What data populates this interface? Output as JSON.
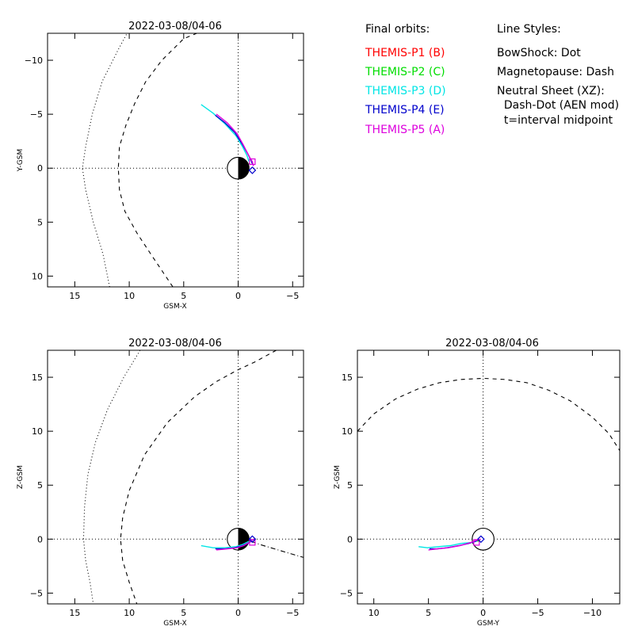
{
  "legend": {
    "orbits_header": "Final orbits:",
    "styles_header": "Line Styles:",
    "probes": [
      {
        "label": "THEMIS-P1 (B)",
        "color": "#ff0000"
      },
      {
        "label": "THEMIS-P2 (C)",
        "color": "#00dd00"
      },
      {
        "label": "THEMIS-P3 (D)",
        "color": "#00e5e5"
      },
      {
        "label": "THEMIS-P4 (E)",
        "color": "#0000cc"
      },
      {
        "label": "THEMIS-P5 (A)",
        "color": "#dd00dd"
      }
    ],
    "styles": [
      "BowShock: Dot",
      "Magnetopause: Dash",
      "Neutral Sheet (XZ):",
      "  Dash-Dot (AEN mod)",
      "  t=interval midpoint"
    ]
  },
  "chart_data": [
    {
      "type": "line",
      "title": "2022-03-08/04-06",
      "xlabel": "GSM-X",
      "ylabel": "Y-GSM",
      "xlim": [
        17.5,
        -6
      ],
      "ylim": [
        -12.5,
        11
      ],
      "x_reversed": true,
      "y_reversed": true,
      "xticks": [
        15,
        10,
        5,
        0,
        -5
      ],
      "yticks": [
        -10,
        -5,
        0,
        5,
        10
      ],
      "xtick_labels": [
        "15",
        "10",
        "5",
        "0",
        "−5"
      ],
      "ytick_labels": [
        "−10",
        "−5",
        "0",
        "5",
        "10"
      ],
      "earth": {
        "center": [
          0,
          0
        ],
        "radius": 1,
        "night_side": "negative-x"
      },
      "bow_shock": {
        "style": "dot",
        "points": [
          [
            11.8,
            11
          ],
          [
            12.4,
            8
          ],
          [
            13.3,
            5
          ],
          [
            14.0,
            2
          ],
          [
            14.3,
            0
          ],
          [
            14.0,
            -2
          ],
          [
            13.4,
            -5
          ],
          [
            12.5,
            -8
          ],
          [
            11.5,
            -10
          ],
          [
            11.0,
            -11
          ],
          [
            10.2,
            -12.5
          ]
        ]
      },
      "magnetopause": {
        "style": "dash",
        "points": [
          [
            6.0,
            11
          ],
          [
            8.0,
            8
          ],
          [
            9.3,
            6
          ],
          [
            10.4,
            4
          ],
          [
            10.9,
            2
          ],
          [
            11.0,
            0
          ],
          [
            10.9,
            -2
          ],
          [
            10.3,
            -4
          ],
          [
            9.5,
            -6
          ],
          [
            8.5,
            -8
          ],
          [
            7.0,
            -10
          ],
          [
            5.0,
            -12
          ],
          [
            3.8,
            -12.5
          ]
        ]
      },
      "series": [
        {
          "name": "THEMIS-P3 (D)",
          "color": "#00e5e5",
          "points": [
            [
              3.4,
              -5.9
            ],
            [
              2.3,
              -5.1
            ],
            [
              1.2,
              -4.1
            ],
            [
              0.2,
              -3.0
            ],
            [
              -0.4,
              -2.0
            ],
            [
              -0.8,
              -1.2
            ],
            [
              -1.0,
              -0.6
            ]
          ]
        },
        {
          "name": "THEMIS-P4 (E)",
          "color": "#0000cc",
          "points": [
            [
              2.1,
              -4.9
            ],
            [
              1.2,
              -4.2
            ],
            [
              0.3,
              -3.3
            ],
            [
              -0.4,
              -2.2
            ],
            [
              -0.9,
              -1.3
            ],
            [
              -1.2,
              -0.7
            ],
            [
              -1.3,
              -0.4
            ]
          ]
        },
        {
          "name": "THEMIS-P5 (A)",
          "color": "#dd00dd",
          "points": [
            [
              2.0,
              -5.0
            ],
            [
              1.0,
              -4.2
            ],
            [
              0.1,
              -3.2
            ],
            [
              -0.5,
              -2.1
            ],
            [
              -1.0,
              -1.1
            ],
            [
              -1.3,
              -0.6
            ],
            [
              -1.4,
              -0.2
            ]
          ]
        },
        {
          "name": "THEMIS-P1 (B)",
          "color": "#ff0000",
          "points": [
            [
              -1.0,
              -0.5
            ],
            [
              -1.1,
              -0.3
            ]
          ]
        },
        {
          "name": "THEMIS-P2 (C)",
          "color": "#00dd00",
          "points": [
            [
              -1.0,
              -0.5
            ],
            [
              -1.1,
              -0.3
            ]
          ]
        }
      ],
      "markers": [
        {
          "shape": "square",
          "color": "#dd00dd",
          "at": [
            -1.3,
            -0.6
          ]
        },
        {
          "shape": "diamond",
          "color": "#0000cc",
          "at": [
            -1.3,
            0.2
          ]
        }
      ]
    },
    {
      "type": "line",
      "title": "2022-03-08/04-06",
      "xlabel": "GSM-X",
      "ylabel": "Z-GSM",
      "xlim": [
        17.5,
        -6
      ],
      "ylim": [
        -6,
        17.5
      ],
      "x_reversed": true,
      "y_reversed": false,
      "xticks": [
        15,
        10,
        5,
        0,
        -5
      ],
      "yticks": [
        -5,
        0,
        5,
        10,
        15
      ],
      "xtick_labels": [
        "15",
        "10",
        "5",
        "0",
        "−5"
      ],
      "ytick_labels": [
        "−5",
        "0",
        "5",
        "10",
        "15"
      ],
      "earth": {
        "center": [
          0,
          0
        ],
        "radius": 1,
        "night_side": "negative-x"
      },
      "bow_shock": {
        "style": "dot",
        "points": [
          [
            9.0,
            17.5
          ],
          [
            10.5,
            15
          ],
          [
            12.0,
            12
          ],
          [
            13.1,
            9
          ],
          [
            13.8,
            6
          ],
          [
            14.1,
            3
          ],
          [
            14.2,
            0
          ],
          [
            14.0,
            -2
          ],
          [
            13.6,
            -4
          ],
          [
            13.3,
            -6
          ]
        ]
      },
      "magnetopause": {
        "style": "dash",
        "points": [
          [
            -3.5,
            17.5
          ],
          [
            -1.5,
            16.4
          ],
          [
            0,
            15.7
          ],
          [
            2.0,
            14.6
          ],
          [
            4.0,
            13.2
          ],
          [
            6.5,
            10.8
          ],
          [
            8.6,
            7.8
          ],
          [
            10.0,
            4.5
          ],
          [
            10.6,
            2.0
          ],
          [
            10.8,
            0
          ],
          [
            10.6,
            -2
          ],
          [
            10.0,
            -4
          ],
          [
            9.3,
            -6
          ]
        ]
      },
      "neutral_sheet": {
        "style": "dash-dot",
        "points": [
          [
            -1.2,
            -0.2
          ],
          [
            -2.0,
            -0.5
          ],
          [
            -3.0,
            -0.8
          ],
          [
            -4.0,
            -1.1
          ],
          [
            -5.0,
            -1.4
          ],
          [
            -6.0,
            -1.7
          ]
        ]
      },
      "series": [
        {
          "name": "THEMIS-P3 (D)",
          "color": "#00e5e5",
          "points": [
            [
              3.4,
              -0.6
            ],
            [
              2.3,
              -0.8
            ],
            [
              1.2,
              -0.8
            ],
            [
              0.2,
              -0.7
            ],
            [
              -0.4,
              -0.5
            ],
            [
              -0.8,
              -0.3
            ],
            [
              -1.0,
              -0.2
            ]
          ]
        },
        {
          "name": "THEMIS-P4 (E)",
          "color": "#0000cc",
          "points": [
            [
              2.1,
              -0.9
            ],
            [
              1.2,
              -0.9
            ],
            [
              0.3,
              -0.8
            ],
            [
              -0.4,
              -0.6
            ],
            [
              -0.9,
              -0.4
            ],
            [
              -1.2,
              -0.2
            ],
            [
              -1.3,
              -0.1
            ]
          ]
        },
        {
          "name": "THEMIS-P5 (A)",
          "color": "#dd00dd",
          "points": [
            [
              2.0,
              -1.0
            ],
            [
              1.0,
              -0.9
            ],
            [
              0.1,
              -0.8
            ],
            [
              -0.5,
              -0.6
            ],
            [
              -1.0,
              -0.3
            ],
            [
              -1.3,
              -0.1
            ],
            [
              -1.4,
              0.0
            ]
          ]
        },
        {
          "name": "THEMIS-P1 (B)",
          "color": "#ff0000",
          "points": [
            [
              -1.0,
              -0.3
            ],
            [
              -1.1,
              -0.1
            ]
          ]
        },
        {
          "name": "THEMIS-P2 (C)",
          "color": "#00dd00",
          "points": [
            [
              -1.0,
              -0.3
            ],
            [
              -1.1,
              -0.1
            ]
          ]
        }
      ],
      "markers": [
        {
          "shape": "square",
          "color": "#dd00dd",
          "at": [
            -1.3,
            -0.3
          ]
        },
        {
          "shape": "diamond",
          "color": "#0000cc",
          "at": [
            -1.3,
            0.0
          ]
        }
      ]
    },
    {
      "type": "line",
      "title": "2022-03-08/04-06",
      "xlabel": "GSM-Y",
      "ylabel": "Z-GSM",
      "xlim": [
        11.5,
        -12.5
      ],
      "ylim": [
        -6,
        17.5
      ],
      "x_reversed": true,
      "y_reversed": false,
      "xticks": [
        10,
        5,
        0,
        -5,
        -10
      ],
      "yticks": [
        -5,
        0,
        5,
        10,
        15
      ],
      "xtick_labels": [
        "10",
        "5",
        "0",
        "−5",
        "−10"
      ],
      "ytick_labels": [
        "−5",
        "0",
        "5",
        "10",
        "15"
      ],
      "earth": {
        "center": [
          0,
          0
        ],
        "radius": 1,
        "night_side": "none"
      },
      "magnetopause": {
        "style": "dash",
        "points": [
          [
            11.5,
            10.0
          ],
          [
            10.0,
            11.6
          ],
          [
            8.0,
            13.0
          ],
          [
            6.0,
            13.9
          ],
          [
            4.0,
            14.5
          ],
          [
            2.0,
            14.8
          ],
          [
            0,
            14.9
          ],
          [
            -2.0,
            14.8
          ],
          [
            -4.0,
            14.5
          ],
          [
            -6.0,
            13.8
          ],
          [
            -8.0,
            12.8
          ],
          [
            -10.0,
            11.3
          ],
          [
            -11.5,
            9.8
          ],
          [
            -12.5,
            8.2
          ]
        ]
      },
      "series": [
        {
          "name": "THEMIS-P3 (D)",
          "color": "#00e5e5",
          "points": [
            [
              0.6,
              -0.2
            ],
            [
              1.0,
              -0.3
            ],
            [
              2.0,
              -0.4
            ],
            [
              3.0,
              -0.6
            ],
            [
              4.1,
              -0.7
            ],
            [
              5.1,
              -0.8
            ],
            [
              5.9,
              -0.7
            ]
          ]
        },
        {
          "name": "THEMIS-P4 (E)",
          "color": "#0000cc",
          "points": [
            [
              0.4,
              -0.1
            ],
            [
              0.7,
              -0.2
            ],
            [
              1.3,
              -0.4
            ],
            [
              2.2,
              -0.6
            ],
            [
              3.3,
              -0.8
            ],
            [
              4.2,
              -0.9
            ],
            [
              4.9,
              -0.9
            ]
          ]
        },
        {
          "name": "THEMIS-P5 (A)",
          "color": "#dd00dd",
          "points": [
            [
              0.2,
              0.0
            ],
            [
              0.6,
              -0.1
            ],
            [
              1.1,
              -0.3
            ],
            [
              2.1,
              -0.6
            ],
            [
              3.2,
              -0.8
            ],
            [
              4.2,
              -0.9
            ],
            [
              5.0,
              -1.0
            ]
          ]
        },
        {
          "name": "THEMIS-P1 (B)",
          "color": "#ff0000",
          "points": [
            [
              0.5,
              -0.2
            ],
            [
              0.3,
              -0.1
            ]
          ]
        },
        {
          "name": "THEMIS-P2 (C)",
          "color": "#00dd00",
          "points": [
            [
              0.5,
              -0.2
            ],
            [
              0.3,
              -0.1
            ]
          ]
        }
      ],
      "markers": [
        {
          "shape": "square",
          "color": "#dd00dd",
          "at": [
            0.6,
            -0.3
          ]
        },
        {
          "shape": "diamond",
          "color": "#0000cc",
          "at": [
            0.2,
            0.0
          ]
        }
      ]
    }
  ]
}
